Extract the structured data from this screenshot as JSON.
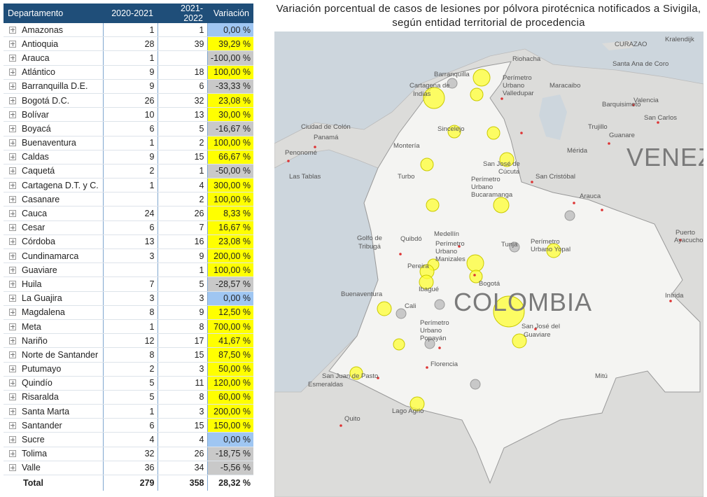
{
  "table": {
    "headers": [
      "Departamento",
      "2020-2021",
      "2021-2022",
      "Variación"
    ],
    "rows": [
      [
        "Amazonas",
        1,
        1,
        "0,00 %"
      ],
      [
        "Antioquia",
        28,
        39,
        "39,29 %"
      ],
      [
        "Arauca",
        1,
        null,
        "-100,00 %"
      ],
      [
        "Atlántico",
        9,
        18,
        "100,00 %"
      ],
      [
        "Barranquilla D.E.",
        9,
        6,
        "-33,33 %"
      ],
      [
        "Bogotá D.C.",
        26,
        32,
        "23,08 %"
      ],
      [
        "Bolívar",
        10,
        13,
        "30,00 %"
      ],
      [
        "Boyacá",
        6,
        5,
        "-16,67 %"
      ],
      [
        "Buenaventura",
        1,
        2,
        "100,00 %"
      ],
      [
        "Caldas",
        9,
        15,
        "66,67 %"
      ],
      [
        "Caquetá",
        2,
        1,
        "-50,00 %"
      ],
      [
        "Cartagena D.T. y C.",
        1,
        4,
        "300,00 %"
      ],
      [
        "Casanare",
        null,
        2,
        "100,00 %"
      ],
      [
        "Cauca",
        24,
        26,
        "8,33 %"
      ],
      [
        "Cesar",
        6,
        7,
        "16,67 %"
      ],
      [
        "Córdoba",
        13,
        16,
        "23,08 %"
      ],
      [
        "Cundinamarca",
        3,
        9,
        "200,00 %"
      ],
      [
        "Guaviare",
        null,
        1,
        "100,00 %"
      ],
      [
        "Huila",
        7,
        5,
        "-28,57 %"
      ],
      [
        "La Guajira",
        3,
        3,
        "0,00 %"
      ],
      [
        "Magdalena",
        8,
        9,
        "12,50 %"
      ],
      [
        "Meta",
        1,
        8,
        "700,00 %"
      ],
      [
        "Nariño",
        12,
        17,
        "41,67 %"
      ],
      [
        "Norte de Santander",
        8,
        15,
        "87,50 %"
      ],
      [
        "Putumayo",
        2,
        3,
        "50,00 %"
      ],
      [
        "Quindío",
        5,
        11,
        "120,00 %"
      ],
      [
        "Risaralda",
        5,
        8,
        "60,00 %"
      ],
      [
        "Santa Marta",
        1,
        3,
        "200,00 %"
      ],
      [
        "Santander",
        6,
        15,
        "150,00 %"
      ],
      [
        "Sucre",
        4,
        4,
        "0,00 %"
      ],
      [
        "Tolima",
        32,
        26,
        "-18,75 %"
      ],
      [
        "Valle",
        36,
        34,
        "-5,56 %"
      ]
    ],
    "total": [
      "Total",
      279,
      358,
      "28,32 %"
    ],
    "variation_colors": {
      "positive": "#ffff00",
      "zero": "#9fc6f2",
      "negative": "#c9c9c9"
    }
  },
  "map": {
    "title": "Variación porcentual de casos de lesiones por pólvora pirotécnica notificados a Sivigila, según entidad territorial de procedencia",
    "labels": [
      "Riohacha",
      "Barranquilla",
      "Perímetro",
      "Urbano",
      "Valledupar",
      "Maracaibo",
      "Cartagena de",
      "Indias",
      "Barquisimeto",
      "Valencia",
      "San Carlos",
      "Trujillo",
      "Guanare",
      "Ciudad de Colón",
      "Panamá",
      "Sincelejo",
      "Penonomé",
      "Montería",
      "Mérida",
      "VENEZ",
      "San José de",
      "Cúcuta",
      "San Cristóbal",
      "Las Tablas",
      "Turbo",
      "Perímetro",
      "Urbano",
      "Bucaramanga",
      "Arauca",
      "Golfo de",
      "Tribugá",
      "Quibdó",
      "Medellín",
      "Perímetro",
      "Urbano",
      "Manizales",
      "Tunja",
      "Perímetro",
      "Urbano Yopal",
      "Puerto",
      "Ayacucho",
      "Pereira",
      "Bogotá",
      "Ibagué",
      "Buenaventura",
      "Inírida",
      "Cali",
      "COLOMBIA",
      "Perímetro",
      "Urbano",
      "Popayán",
      "San José del",
      "Guaviare",
      "Florencia",
      "Mitú",
      "San Juan de Pasto",
      "Esmeraldas",
      "Lago Agrio",
      "Quito",
      "Kralendijk",
      "CURAZAO",
      "Santa Ana de Coro"
    ]
  }
}
